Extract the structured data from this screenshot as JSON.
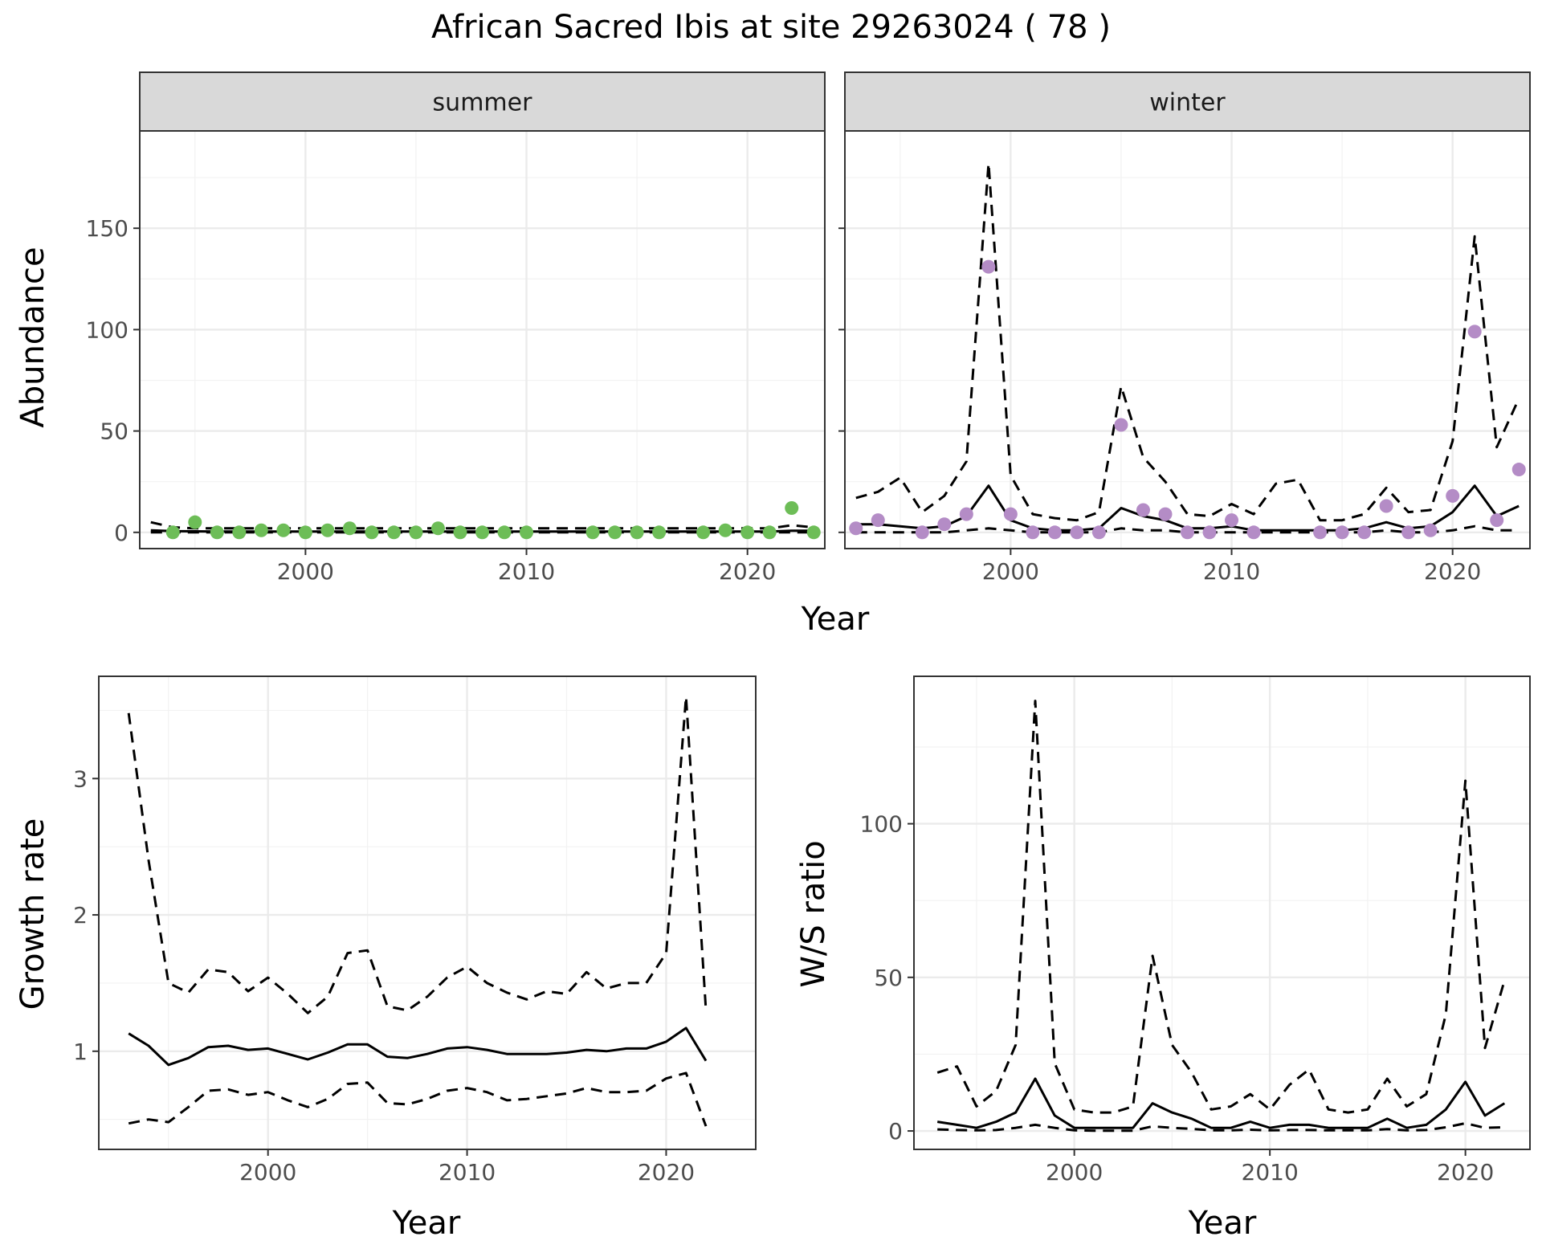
{
  "title": "African Sacred Ibis at site 29263024 ( 78 )",
  "chart_data": [
    {
      "type": "line",
      "panel": "summer",
      "strip_label": "summer",
      "xlabel": "Year",
      "ylabel": "Abundance",
      "xlim": [
        1992.5,
        2023.5
      ],
      "ylim": [
        -8,
        198
      ],
      "x_ticks": [
        2000,
        2010,
        2020
      ],
      "y_ticks": [
        0,
        50,
        100,
        150
      ],
      "point_color": "#6dbd57",
      "points": {
        "x": [
          1994,
          1995,
          1996,
          1997,
          1998,
          1999,
          2000,
          2001,
          2002,
          2003,
          2004,
          2005,
          2006,
          2007,
          2008,
          2009,
          2010,
          2013,
          2014,
          2015,
          2016,
          2018,
          2019,
          2020,
          2021,
          2022,
          2023
        ],
        "y": [
          0,
          5,
          0,
          0,
          1,
          1,
          0,
          1,
          2,
          0,
          0,
          0,
          2,
          0,
          0,
          0,
          0,
          0,
          0,
          0,
          0,
          0,
          1,
          0,
          0,
          12,
          0
        ]
      },
      "line_x": [
        1993,
        1994,
        1995,
        1996,
        1997,
        1998,
        1999,
        2000,
        2001,
        2002,
        2003,
        2004,
        2005,
        2006,
        2007,
        2008,
        2009,
        2010,
        2011,
        2012,
        2013,
        2014,
        2015,
        2016,
        2017,
        2018,
        2019,
        2020,
        2021,
        2022,
        2023
      ],
      "estimate": [
        1,
        0.6,
        0.5,
        0.4,
        0.4,
        0.4,
        0.4,
        0.4,
        0.4,
        0.4,
        0.4,
        0.4,
        0.4,
        0.4,
        0.4,
        0.4,
        0.4,
        0.4,
        0.4,
        0.4,
        0.4,
        0.4,
        0.4,
        0.4,
        0.4,
        0.4,
        0.4,
        0.4,
        0.4,
        0.8,
        0.8
      ],
      "lower": [
        0,
        0,
        0,
        0,
        0,
        0,
        0,
        0,
        0,
        0,
        0,
        0,
        0,
        0,
        0,
        0,
        0,
        0,
        0,
        0,
        0,
        0,
        0,
        0,
        0,
        0,
        0,
        0,
        0,
        0,
        0
      ],
      "upper": [
        5,
        2.5,
        2,
        2,
        2,
        2,
        2,
        2,
        2,
        2,
        2,
        2,
        2,
        2,
        2,
        2,
        2,
        2,
        2,
        2,
        2,
        2,
        2,
        2,
        2,
        2,
        2,
        2,
        2,
        3.5,
        2.5
      ]
    },
    {
      "type": "line",
      "panel": "winter",
      "strip_label": "winter",
      "xlabel": "Year",
      "ylabel": "Abundance",
      "xlim": [
        1992.5,
        2023.5
      ],
      "ylim": [
        -8,
        198
      ],
      "x_ticks": [
        2000,
        2010,
        2020
      ],
      "y_ticks": [
        0,
        50,
        100,
        150
      ],
      "point_color": "#b48cc6",
      "points": {
        "x": [
          1993,
          1994,
          1996,
          1997,
          1998,
          1999,
          2000,
          2001,
          2002,
          2003,
          2004,
          2005,
          2006,
          2007,
          2008,
          2009,
          2010,
          2011,
          2014,
          2015,
          2016,
          2017,
          2018,
          2019,
          2020,
          2021,
          2022,
          2023
        ],
        "y": [
          2,
          6,
          0,
          4,
          9,
          131,
          9,
          0,
          0,
          0,
          0,
          53,
          11,
          9,
          0,
          0,
          6,
          0,
          0,
          0,
          0,
          13,
          0,
          1,
          18,
          99,
          6,
          31
        ]
      },
      "line_x": [
        1993,
        1994,
        1995,
        1996,
        1997,
        1998,
        1999,
        2000,
        2001,
        2002,
        2003,
        2004,
        2005,
        2006,
        2007,
        2008,
        2009,
        2010,
        2011,
        2012,
        2013,
        2014,
        2015,
        2016,
        2017,
        2018,
        2019,
        2020,
        2021,
        2022,
        2023
      ],
      "estimate": [
        4,
        4,
        3,
        2,
        3,
        8,
        23,
        6,
        2,
        1,
        1,
        2,
        12,
        8,
        6,
        2,
        2,
        3,
        1,
        1,
        1,
        1,
        1,
        2,
        5,
        2,
        3,
        10,
        23,
        8,
        13
      ],
      "lower": [
        0,
        0,
        0,
        0,
        0,
        1,
        2,
        1,
        0,
        0,
        0,
        0,
        2,
        1,
        1,
        0,
        0,
        0,
        0,
        0,
        0,
        0,
        0,
        0,
        1,
        0,
        0,
        1,
        3,
        1,
        1
      ],
      "upper": [
        17,
        20,
        27,
        10,
        18,
        35,
        182,
        28,
        9,
        7,
        6,
        10,
        72,
        37,
        25,
        9,
        8,
        14,
        9,
        24,
        26,
        6,
        6,
        9,
        22,
        10,
        11,
        45,
        146,
        42,
        66
      ]
    },
    {
      "type": "line",
      "panel": "growth",
      "xlabel": "Year",
      "ylabel": "Growth rate",
      "xlim": [
        1991.5,
        2024.5
      ],
      "ylim": [
        0.28,
        3.75
      ],
      "x_ticks": [
        2000,
        2010,
        2020
      ],
      "y_ticks": [
        1,
        2,
        3
      ],
      "line_x": [
        1993,
        1994,
        1995,
        1996,
        1997,
        1998,
        1999,
        2000,
        2001,
        2002,
        2003,
        2004,
        2005,
        2006,
        2007,
        2008,
        2009,
        2010,
        2011,
        2012,
        2013,
        2014,
        2015,
        2016,
        2017,
        2018,
        2019,
        2020,
        2021,
        2022
      ],
      "estimate": [
        1.13,
        1.04,
        0.9,
        0.95,
        1.03,
        1.04,
        1.01,
        1.02,
        0.98,
        0.94,
        0.99,
        1.05,
        1.05,
        0.96,
        0.95,
        0.98,
        1.02,
        1.03,
        1.01,
        0.98,
        0.98,
        0.98,
        0.99,
        1.01,
        1.0,
        1.02,
        1.02,
        1.07,
        1.17,
        0.93
      ],
      "lower": [
        0.47,
        0.5,
        0.48,
        0.59,
        0.71,
        0.72,
        0.68,
        0.7,
        0.64,
        0.59,
        0.65,
        0.76,
        0.77,
        0.62,
        0.61,
        0.65,
        0.71,
        0.73,
        0.7,
        0.64,
        0.65,
        0.67,
        0.69,
        0.73,
        0.7,
        0.7,
        0.71,
        0.8,
        0.84,
        0.45
      ],
      "upper": [
        3.48,
        2.4,
        1.5,
        1.43,
        1.6,
        1.58,
        1.44,
        1.54,
        1.42,
        1.28,
        1.4,
        1.72,
        1.74,
        1.33,
        1.3,
        1.4,
        1.54,
        1.62,
        1.5,
        1.43,
        1.38,
        1.44,
        1.42,
        1.58,
        1.46,
        1.5,
        1.5,
        1.72,
        3.6,
        1.3
      ]
    },
    {
      "type": "line",
      "panel": "ratio",
      "xlabel": "Year",
      "ylabel": "W/S ratio",
      "xlim": [
        1991.8,
        2023.3
      ],
      "ylim": [
        -6,
        148
      ],
      "x_ticks": [
        2000,
        2010,
        2020
      ],
      "y_ticks": [
        0,
        50,
        100
      ],
      "line_x": [
        1993,
        1994,
        1995,
        1996,
        1997,
        1998,
        1999,
        2000,
        2001,
        2002,
        2003,
        2004,
        2005,
        2006,
        2007,
        2008,
        2009,
        2010,
        2011,
        2012,
        2013,
        2014,
        2015,
        2016,
        2017,
        2018,
        2019,
        2020,
        2021,
        2022
      ],
      "estimate": [
        3,
        2,
        1,
        3,
        6,
        17,
        5,
        1,
        1,
        1,
        1,
        9,
        6,
        4,
        1,
        1,
        3,
        1,
        2,
        2,
        1,
        1,
        1,
        4,
        1,
        2,
        7,
        16,
        5,
        9
      ],
      "lower": [
        0.5,
        0.3,
        0.2,
        0.3,
        1,
        2,
        1,
        0.2,
        0.1,
        0.1,
        0.1,
        1.5,
        1,
        0.7,
        0.2,
        0.2,
        0.4,
        0.2,
        0.3,
        0.3,
        0.2,
        0.2,
        0.2,
        0.6,
        0.2,
        0.3,
        1.2,
        2.5,
        1,
        1.2
      ],
      "upper": [
        19,
        21,
        8,
        13,
        28,
        140,
        22,
        7,
        6,
        6,
        8,
        57,
        28,
        19,
        7,
        8,
        12,
        7,
        15,
        20,
        7,
        6,
        7,
        17,
        8,
        12,
        38,
        114,
        27,
        49
      ]
    }
  ]
}
